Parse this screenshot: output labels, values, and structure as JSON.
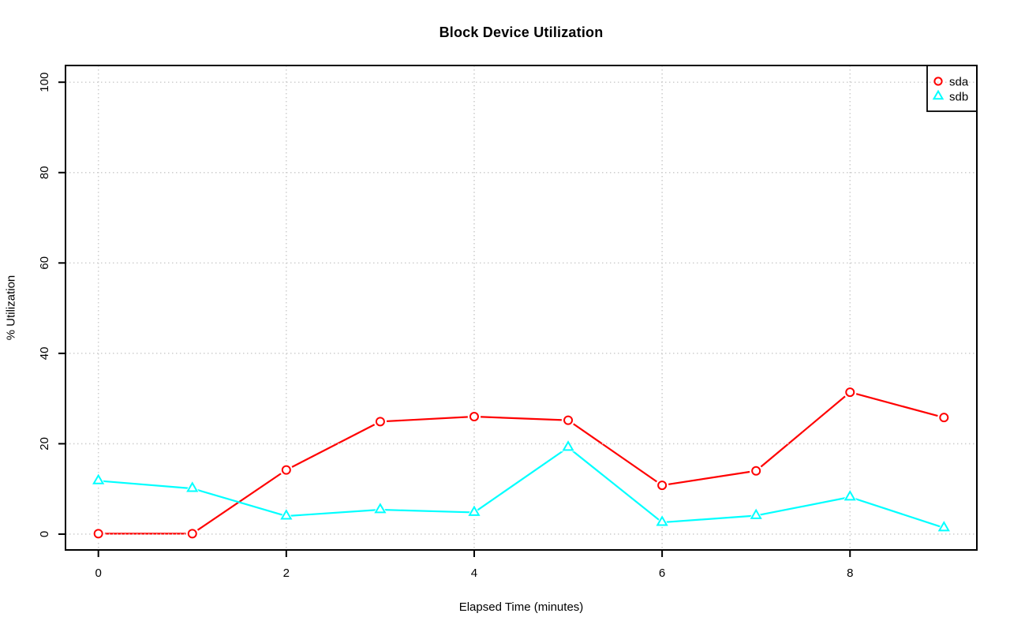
{
  "chart_data": {
    "type": "line",
    "title": "Block Device Utilization",
    "xlabel": "Elapsed Time (minutes)",
    "ylabel": "% Utilization",
    "x": [
      0,
      1,
      2,
      3,
      4,
      5,
      6,
      7,
      8,
      9
    ],
    "series": [
      {
        "name": "sda",
        "color": "#FF0000",
        "marker": "circle",
        "values": [
          0.1,
          0.1,
          14.2,
          24.9,
          26.0,
          25.2,
          10.8,
          14.0,
          31.4,
          25.8
        ]
      },
      {
        "name": "sdb",
        "color": "#00FFFF",
        "marker": "triangle",
        "values": [
          11.8,
          10.1,
          4.0,
          5.4,
          4.8,
          19.2,
          2.6,
          4.1,
          8.2,
          1.4
        ]
      }
    ],
    "xticks": [
      0,
      2,
      4,
      6,
      8
    ],
    "yticks": [
      0,
      20,
      40,
      60,
      80,
      100
    ],
    "xtick_labels": [
      "0",
      "2",
      "4",
      "6",
      "8"
    ],
    "ytick_labels": [
      "0",
      "20",
      "40",
      "60",
      "80",
      "100"
    ],
    "xlim": [
      -0.35,
      9.35
    ],
    "ylim": [
      -3.5,
      103.7
    ],
    "grid": true,
    "grid_color": "#CDCDCD",
    "axis_color": "#000000",
    "background": "#FFFFFF",
    "legend_position": "topright",
    "legend_labels": [
      "sda",
      "sdb"
    ]
  }
}
